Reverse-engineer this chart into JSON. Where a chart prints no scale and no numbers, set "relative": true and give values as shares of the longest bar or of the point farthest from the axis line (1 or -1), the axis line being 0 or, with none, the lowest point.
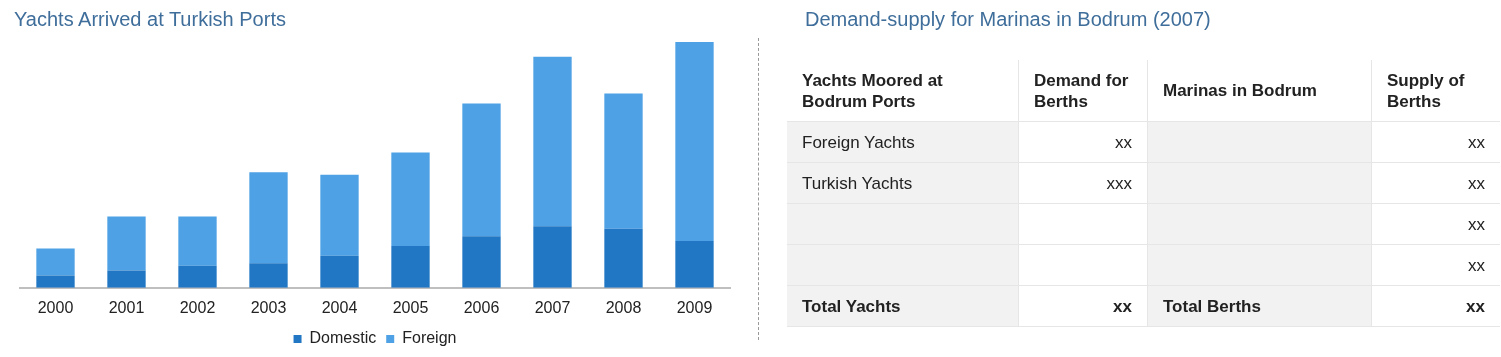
{
  "chart_data": [
    {
      "type": "bar",
      "title": "Yachts Arrived at Turkish Ports",
      "categories": [
        "2000",
        "2001",
        "2002",
        "2003",
        "2004",
        "2005",
        "2006",
        "2007",
        "2008",
        "2009"
      ],
      "stacked": true,
      "relative": true,
      "legend": "bottom",
      "series": [
        {
          "name": "Domestic",
          "color": "#2277c4",
          "values": [
            0.05,
            0.07,
            0.09,
            0.1,
            0.13,
            0.17,
            0.21,
            0.25,
            0.24,
            0.19
          ]
        },
        {
          "name": "Foreign",
          "color": "#4ea1e4",
          "values": [
            0.11,
            0.22,
            0.2,
            0.37,
            0.33,
            0.38,
            0.54,
            0.69,
            0.55,
            0.81
          ]
        }
      ]
    },
    {
      "type": "other",
      "title": "Demand-supply for Marinas in Bodrum (2007)",
      "annotations": [
        "Yachts Moored at Bodrum Ports",
        "Demand for Berths",
        "Marinas in Bodrum",
        "Supply of Berths",
        "Foreign Yachts",
        "xx",
        null,
        "xx",
        "Turkish Yachts",
        "xxx",
        null,
        "xx",
        null,
        null,
        null,
        "xx",
        null,
        null,
        null,
        "xx",
        "Total Yachts",
        "xx",
        "Total Berths",
        "xx"
      ]
    }
  ]
}
